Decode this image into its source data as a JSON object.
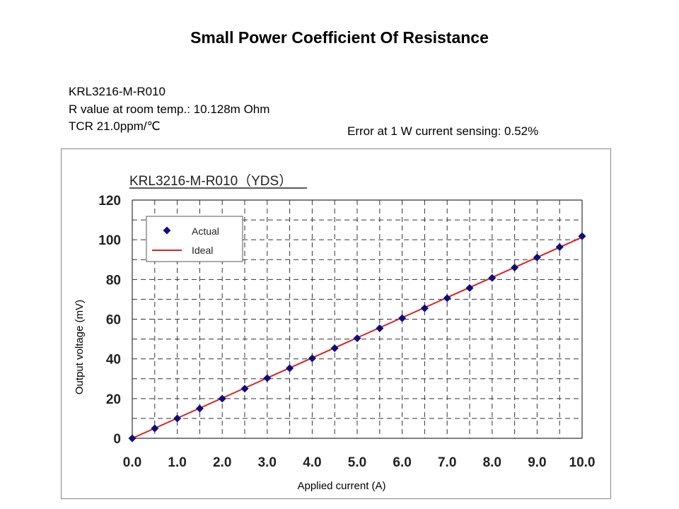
{
  "slide": {
    "title": "Small Power Coefficient Of Resistance",
    "spec_lines": [
      "KRL3216-M-R010",
      "R value at room temp.: 10.128m Ohm",
      "TCR 21.0ppm/℃"
    ],
    "error_note": "Error at 1 W current sensing: 0.52%"
  },
  "colors": {
    "actual_marker": "#0d0d80",
    "ideal_line": "#e02020",
    "grid": "#333333"
  },
  "chart_data": {
    "type": "line",
    "title": "KRL3216-M-R010（YDS）",
    "xlabel": "Applied current (A)",
    "ylabel": "Output voltage (mV)",
    "xlim": [
      0,
      10
    ],
    "ylim": [
      0,
      120
    ],
    "x_ticks": [
      "0.0",
      "1.0",
      "2.0",
      "3.0",
      "4.0",
      "5.0",
      "6.0",
      "7.0",
      "8.0",
      "9.0",
      "10.0"
    ],
    "y_ticks": [
      "0",
      "20",
      "40",
      "60",
      "80",
      "100",
      "120"
    ],
    "grid": true,
    "legend_position": "top-left",
    "series": [
      {
        "name": "Actual",
        "style": "markers",
        "x": [
          0,
          0.5,
          1,
          1.5,
          2,
          2.5,
          3,
          3.5,
          4,
          4.5,
          5,
          5.5,
          6,
          6.5,
          7,
          7.5,
          8,
          8.5,
          9,
          9.5,
          10
        ],
        "y": [
          0,
          5,
          10,
          15,
          20,
          25,
          30.3,
          35.3,
          40.3,
          45.4,
          50.4,
          55.4,
          60.5,
          65.5,
          70.6,
          75.7,
          80.8,
          86,
          91.1,
          96.3,
          101.8
        ]
      },
      {
        "name": "Ideal",
        "style": "line",
        "x": [
          0,
          10
        ],
        "y": [
          0,
          101.28
        ]
      }
    ]
  }
}
